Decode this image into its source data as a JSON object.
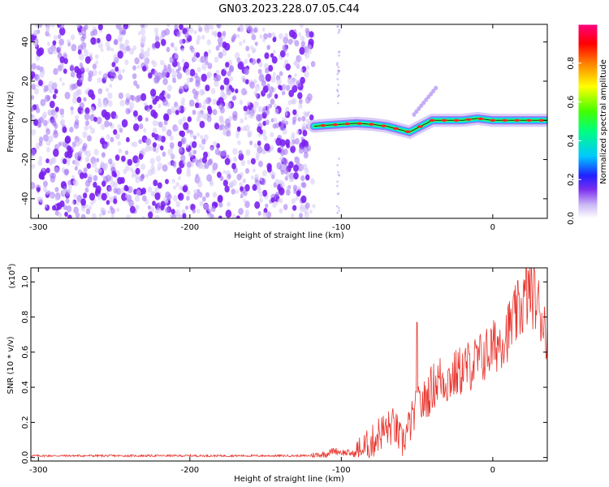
{
  "title": "GN03.2023.228.07.05.C44",
  "chart_data": [
    {
      "type": "heatmap",
      "xlabel": "Height of straight line (km)",
      "ylabel": "Frequency (Hz)",
      "xlim": [
        -305,
        36
      ],
      "ylim": [
        -50,
        49
      ],
      "xticks": [
        -300,
        -200,
        -100,
        0
      ],
      "yticks": [
        -40,
        -20,
        0,
        20,
        40
      ],
      "noise_region_x": [
        -305,
        -118
      ],
      "signal_track": {
        "x": [
          -118,
          -110,
          -100,
          -90,
          -80,
          -70,
          -60,
          -55,
          -50,
          -45,
          -40,
          -30,
          -20,
          -10,
          0,
          10,
          20,
          30,
          36
        ],
        "y": [
          -3,
          -2.5,
          -2,
          -1.5,
          -2,
          -3,
          -5,
          -6,
          -4,
          -2,
          0,
          0,
          0,
          1,
          0,
          0,
          0,
          0,
          0
        ]
      },
      "colorbar": {
        "label": "Normalized spectral amplitude",
        "range": [
          0,
          1
        ],
        "ticks": [
          0.0,
          0.2,
          0.4,
          0.6,
          0.8
        ],
        "colors": [
          "#ffffff",
          "#cbb8f5",
          "#7a2ef0",
          "#2020ff",
          "#00c8ff",
          "#00ff80",
          "#40ff00",
          "#ffff00",
          "#ff8000",
          "#ff0000",
          "#ff0080"
        ]
      }
    },
    {
      "type": "line",
      "xlabel": "Height of straight line (km)",
      "ylabel": "SNR (10 * v/v)",
      "ymultiplier": "(x10",
      "ymultiplier_exp": "4",
      "ymultiplier_close": ")",
      "xlim": [
        -305,
        36
      ],
      "ylim": [
        -0.02,
        1.08
      ],
      "xticks": [
        -300,
        -200,
        -100,
        0
      ],
      "yticks": [
        0.0,
        0.2,
        0.4,
        0.6,
        0.8,
        1.0
      ],
      "color": "#e8352e",
      "trend": {
        "x": [
          -305,
          -120,
          -110,
          -105,
          -100,
          -90,
          -80,
          -75,
          -65,
          -60,
          -50,
          -45,
          -40,
          -35,
          -30,
          -20,
          -10,
          0,
          10,
          20,
          25,
          30,
          36
        ],
        "y": [
          0.01,
          0.01,
          0.02,
          0.04,
          0.03,
          0.02,
          0.08,
          0.14,
          0.18,
          0.08,
          0.28,
          0.32,
          0.4,
          0.45,
          0.44,
          0.5,
          0.55,
          0.62,
          0.72,
          0.88,
          0.96,
          0.86,
          0.72
        ]
      },
      "spikes": [
        {
          "x": -50,
          "y": 0.77
        },
        {
          "x": 22,
          "y": 1.08
        }
      ]
    }
  ]
}
